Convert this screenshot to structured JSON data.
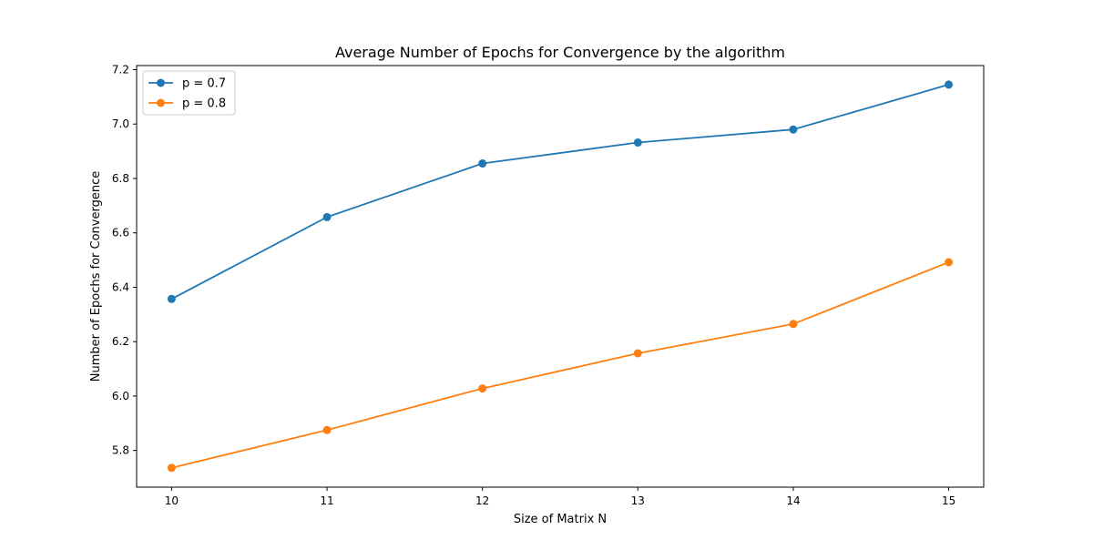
{
  "chart_data": {
    "type": "line",
    "title": "Average Number of Epochs for Convergence by the algorithm",
    "xlabel": "Size of Matrix N",
    "ylabel": "Number of Epochs for Convergence",
    "x": [
      10,
      11,
      12,
      13,
      14,
      15
    ],
    "x_ticks": [
      "10",
      "11",
      "12",
      "13",
      "14",
      "15"
    ],
    "xlim": [
      9.775,
      15.225
    ],
    "y_ticks": [
      "5.8",
      "6.0",
      "6.2",
      "6.4",
      "6.6",
      "6.8",
      "7.0",
      "7.2"
    ],
    "y_tick_values": [
      5.8,
      6.0,
      6.2,
      6.4,
      6.6,
      6.8,
      7.0,
      7.2
    ],
    "ylim": [
      5.665,
      7.215
    ],
    "grid": false,
    "legend_position": "top-left",
    "series": [
      {
        "name": "p = 0.7",
        "color": "#1f77b4",
        "marker": "circle",
        "values": [
          6.357,
          6.658,
          6.855,
          6.932,
          6.98,
          7.145
        ]
      },
      {
        "name": "p = 0.8",
        "color": "#ff7f0e",
        "marker": "circle",
        "values": [
          5.736,
          5.875,
          6.028,
          6.157,
          6.265,
          6.492
        ]
      }
    ]
  }
}
